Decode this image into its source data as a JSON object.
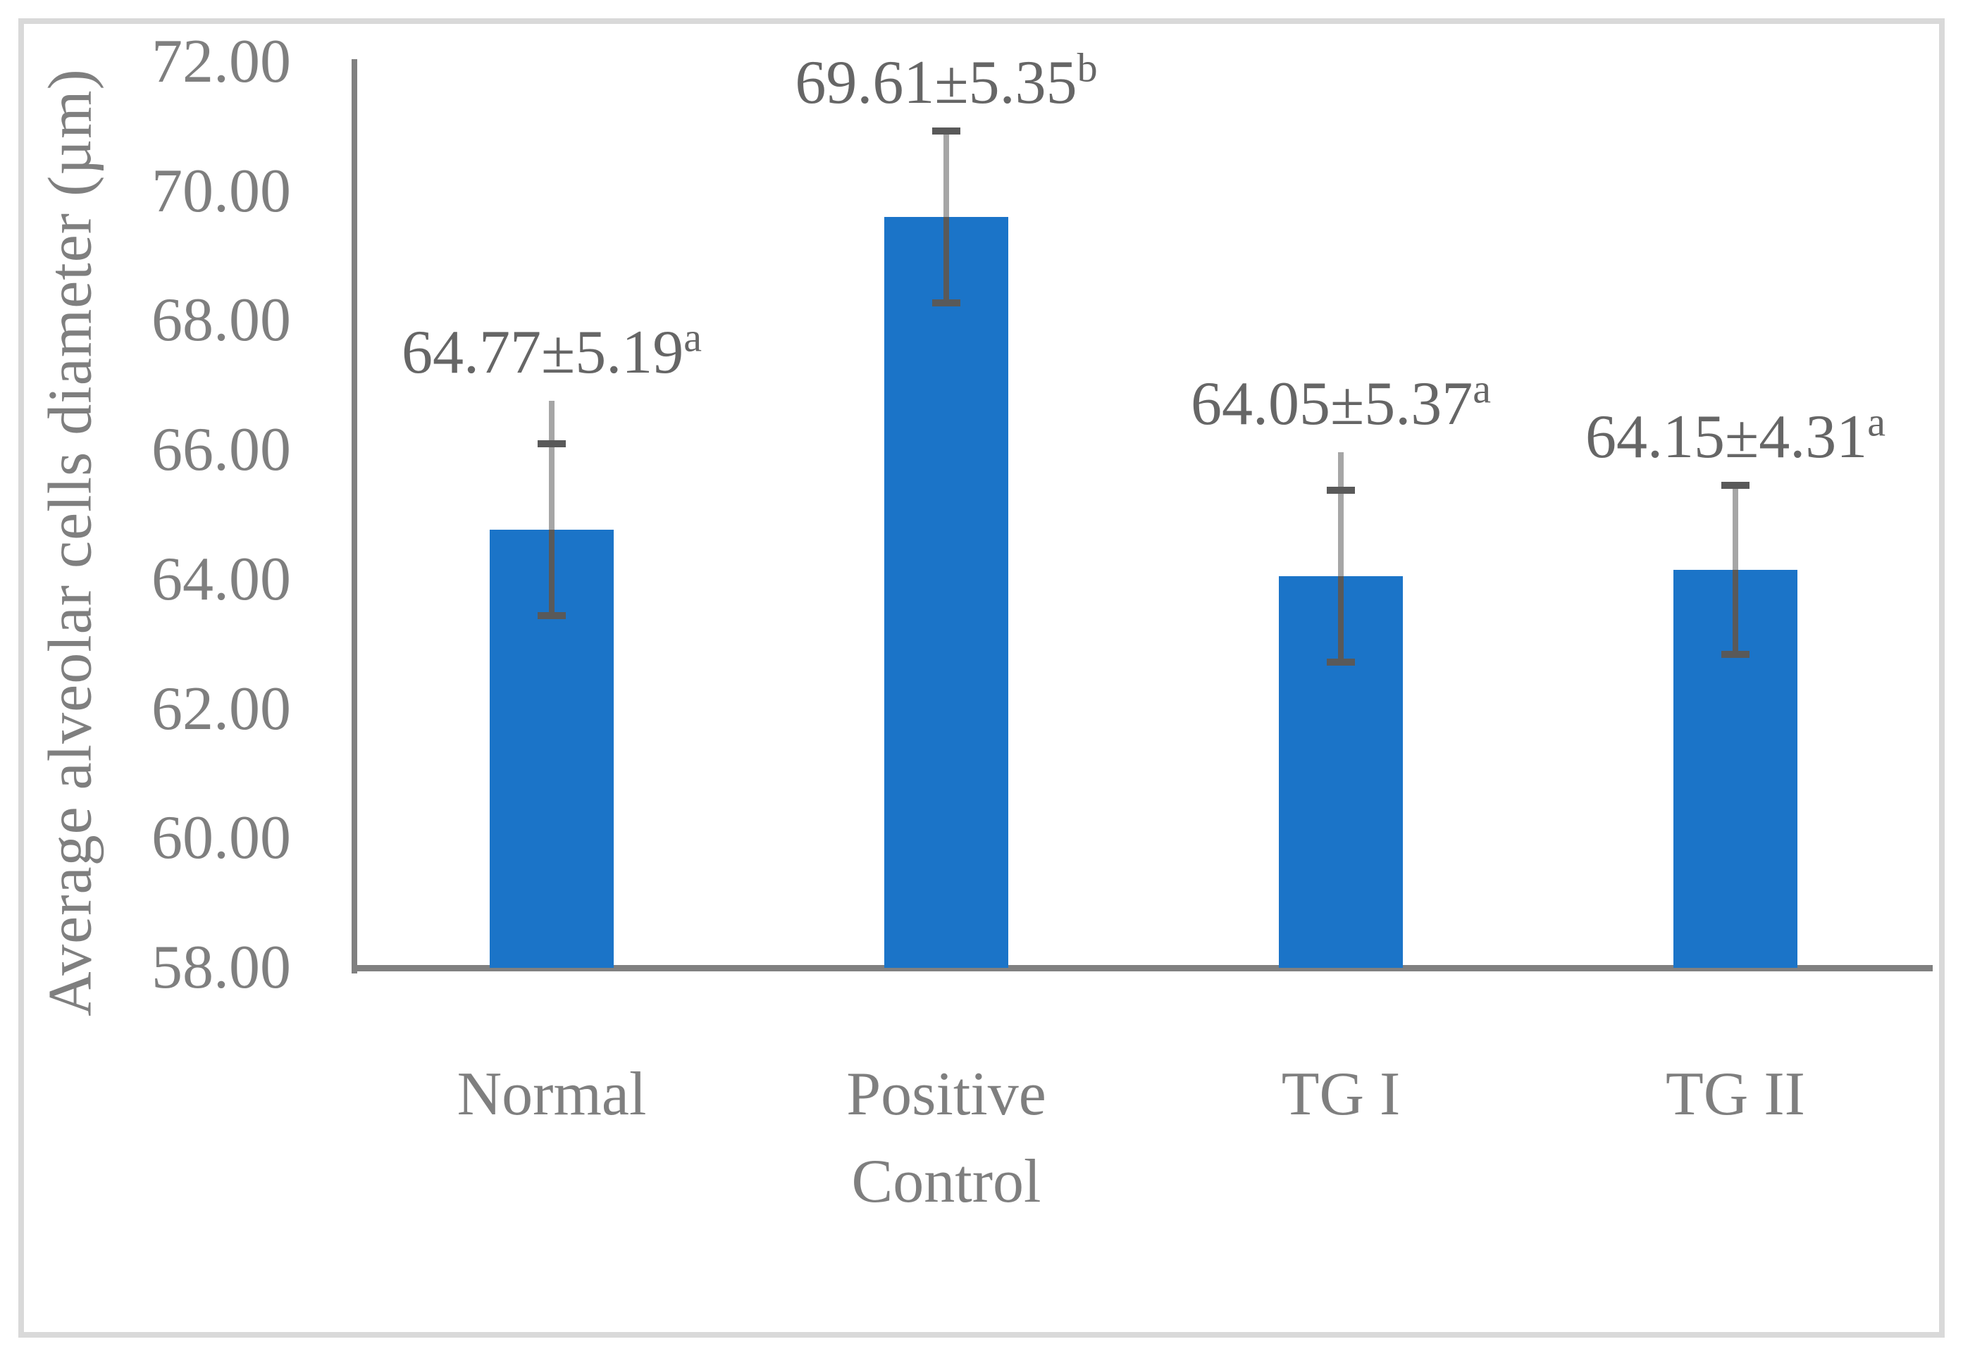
{
  "chart_data": {
    "type": "bar",
    "title": "",
    "ylabel": "Average alveolar cells diameter (µm)",
    "xlabel": "",
    "ylim": [
      58,
      72
    ],
    "y_tick_labels": [
      "72.00",
      "70.00",
      "68.00",
      "66.00",
      "64.00",
      "62.00",
      "60.00",
      "58.00"
    ],
    "y_tick_values": [
      72,
      70,
      68,
      66,
      64,
      62,
      60,
      58
    ],
    "grid": false,
    "legend": "none",
    "categories": [
      "Normal",
      "Positive Control",
      "TG I",
      "TG II"
    ],
    "category_label_lines": [
      [
        "Normal"
      ],
      [
        "Positive",
        "Control"
      ],
      [
        "TG I"
      ],
      [
        "TG II"
      ]
    ],
    "values": [
      64.77,
      69.61,
      64.05,
      64.15
    ],
    "std_devs": [
      5.19,
      5.35,
      5.37,
      4.31
    ],
    "significance_letters": [
      "a",
      "b",
      "a",
      "a"
    ],
    "data_labels": [
      "64.77±5.19",
      "69.61±5.35",
      "64.05±5.37",
      "64.15±4.31"
    ],
    "error_cap_upper": [
      66.1,
      70.93,
      65.38,
      65.46
    ],
    "error_cap_lower": [
      63.44,
      68.28,
      62.72,
      62.84
    ],
    "whisker_top": [
      66.76,
      70.93,
      65.97,
      65.46
    ]
  },
  "colors": {
    "bar": "#1B74C8",
    "error_dark": "#595959",
    "error_light": "#A6A6A6",
    "axis_line": "#808080",
    "axis_text": "#7F7F7F",
    "data_label_text": "#666666",
    "frame_border": "#D9D9D9",
    "background": "#FFFFFF"
  }
}
